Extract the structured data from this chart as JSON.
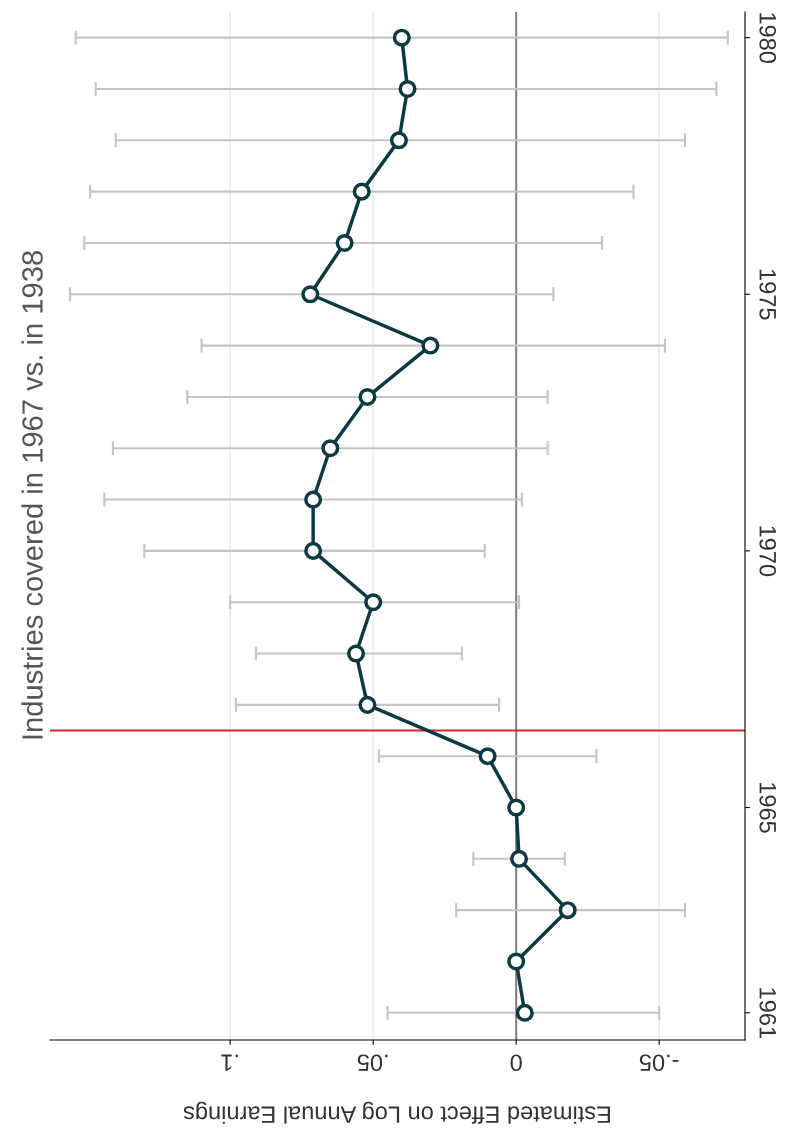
{
  "chart_data": {
    "type": "line",
    "title": "Industries covered in 1967 vs. in 1938",
    "xlabel": "Estimated Effect on Log Annual Earnings",
    "series": [
      {
        "color": "#0b3a44",
        "x": [
          -0.003,
          0.0,
          -0.018,
          -0.001,
          0.0,
          0.01,
          0.052,
          0.056,
          0.05,
          0.071,
          0.071,
          0.065,
          0.052,
          0.03,
          0.072,
          0.06,
          0.054,
          0.041,
          0.038,
          0.04
        ],
        "values": [
          1961,
          1962,
          1963,
          1964,
          1965,
          1966,
          1967,
          1968,
          1969,
          1970,
          1971,
          1972,
          1973,
          1974,
          1975,
          1976,
          1977,
          1978,
          1979,
          1980
        ],
        "xerrors": [
          [
            -0.05,
            0.045
          ],
          null,
          [
            -0.059,
            0.021
          ],
          [
            -0.017,
            0.015
          ],
          null,
          [
            -0.028,
            0.048
          ],
          [
            0.006,
            0.098
          ],
          [
            0.019,
            0.091
          ],
          [
            -0.001,
            0.1
          ],
          [
            0.011,
            0.13
          ],
          [
            -0.002,
            0.144
          ],
          [
            -0.011,
            0.141
          ],
          [
            -0.011,
            0.115
          ],
          [
            -0.052,
            0.11
          ],
          [
            -0.013,
            0.156
          ],
          [
            -0.03,
            0.151
          ],
          [
            -0.041,
            0.149
          ],
          [
            -0.059,
            0.14
          ],
          [
            -0.07,
            0.147
          ],
          [
            -0.074,
            0.154
          ]
        ]
      }
    ],
    "marker": "circle",
    "line_style": "solid",
    "ylim": [
      1960.47,
      1980.5
    ],
    "yticks": [
      1961,
      1965,
      1970,
      1975,
      1980
    ],
    "xlim": [
      0.163,
      -0.08
    ],
    "xticks": [
      {
        "value": -0.05,
        "label": "-.05"
      },
      0,
      {
        "value": 0.05,
        "label": ".05"
      },
      {
        "value": 0.1,
        "label": ".1"
      }
    ],
    "grid": "x",
    "ref_lines": [
      {
        "axis": "x",
        "value": 0,
        "color": "#808080"
      },
      {
        "axis": "y",
        "value": 1966.5,
        "color": "#d62728"
      }
    ]
  }
}
